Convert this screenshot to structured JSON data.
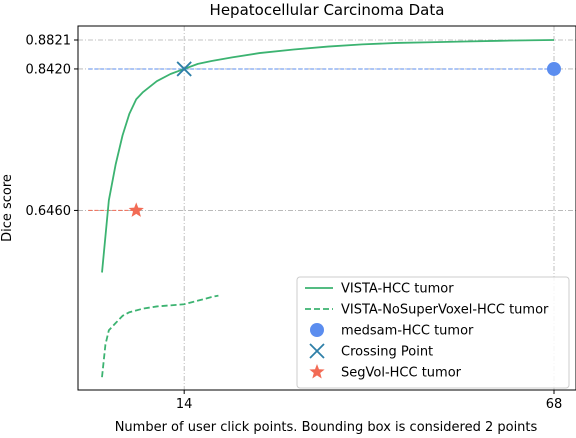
{
  "chart_data": {
    "type": "line",
    "title": "Hepatocellular Carcinoma Data",
    "xlabel": "Number of user click points. Bounding box is considered 2 points",
    "ylabel": "Dice score",
    "xlim": [
      0,
      72
    ],
    "ylim": [
      0.4,
      0.89
    ],
    "x_ticks": [
      {
        "value": 14,
        "label": "14"
      },
      {
        "value": 68,
        "label": "68"
      }
    ],
    "y_ticks": [
      {
        "value": 0.646,
        "label": "0.6460"
      },
      {
        "value": 0.842,
        "label": "0.8420"
      },
      {
        "value": 0.8821,
        "label": "0.8821"
      }
    ],
    "grid": true,
    "legend_position": "bottom-right",
    "series": [
      {
        "name": "VISTA-HCC tumor",
        "kind": "line",
        "style": "solid",
        "color": "#3cb371",
        "x": [
          2,
          3,
          4,
          5,
          6,
          7,
          8,
          10,
          12,
          14,
          16,
          18,
          21,
          25,
          30,
          35,
          40,
          45,
          50,
          55,
          60,
          65,
          68
        ],
        "y": [
          0.56,
          0.66,
          0.71,
          0.75,
          0.78,
          0.8,
          0.81,
          0.825,
          0.835,
          0.842,
          0.849,
          0.853,
          0.858,
          0.864,
          0.869,
          0.873,
          0.876,
          0.878,
          0.879,
          0.88,
          0.881,
          0.8818,
          0.8821
        ]
      },
      {
        "name": "VISTA-NoSuperVoxel-HCC tumor",
        "kind": "line",
        "style": "dashed",
        "color": "#3cb371",
        "x": [
          2,
          2.5,
          3,
          4,
          5,
          6,
          8,
          10,
          14,
          16,
          18,
          19
        ],
        "y": [
          0.415,
          0.46,
          0.48,
          0.49,
          0.5,
          0.505,
          0.51,
          0.513,
          0.516,
          0.521,
          0.526,
          0.528
        ]
      },
      {
        "name": "medsam-HCC tumor",
        "kind": "marker",
        "marker": "circle",
        "color": "#5b8def",
        "x": [
          68
        ],
        "y": [
          0.842
        ],
        "ref_line": {
          "from_x": 0,
          "style": "dashed",
          "color": "#5b8def"
        }
      },
      {
        "name": "Crossing Point",
        "kind": "marker",
        "marker": "x",
        "color": "#2e7fa8",
        "x": [
          14
        ],
        "y": [
          0.842
        ]
      },
      {
        "name": "SegVol-HCC tumor",
        "kind": "marker",
        "marker": "star",
        "color": "#f26b55",
        "x": [
          7
        ],
        "y": [
          0.646
        ],
        "ref_line": {
          "from_x": 0,
          "style": "dashed",
          "color": "#f26b55"
        }
      }
    ]
  }
}
